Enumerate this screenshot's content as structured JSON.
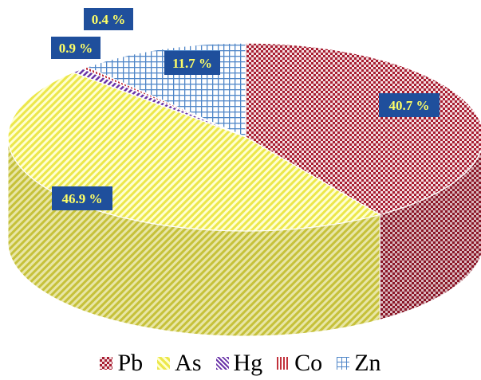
{
  "chart_data": {
    "type": "pie",
    "style": "3d-pie",
    "categories": [
      "Pb",
      "As",
      "Hg",
      "Co",
      "Zn"
    ],
    "values": [
      40.7,
      46.9,
      0.9,
      0.4,
      11.7
    ],
    "unit": "%",
    "data_labels": [
      "40.7 %",
      "46.9 %",
      "0.9 %",
      "0.4 %",
      "11.7 %"
    ],
    "colors": [
      "#b22a3a",
      "#f3f06b",
      "#7a3fb0",
      "#c9363f",
      "#6f9fd6"
    ],
    "label_box_color": "#1f4f9c",
    "label_text_color": "#ffff66",
    "legend_placement": "bottom"
  }
}
